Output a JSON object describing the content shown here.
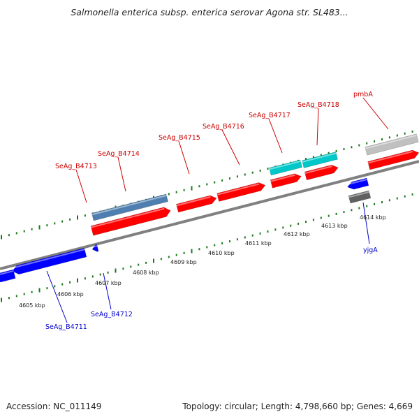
{
  "title": "Salmonella enterica subsp. enterica serovar Agona str. SL483...",
  "accession": "Accession: NC_011149",
  "stats": "Topology: circular; Length: 4,798,660 bp; Genes: 4,669",
  "colors": {
    "forward_cds": "#ff0000",
    "reverse_cds": "#0000ff",
    "trna": "#00c8c8",
    "steel": "#4f7fb0",
    "pseudo_light": "#c0c0c0",
    "pseudo_dark": "#606060",
    "tick": "#1a7a1a",
    "backbone": "#808080",
    "label_fwd": "#cc0000",
    "label_rev": "#0000cc"
  },
  "ticks": [
    "4605 kbp",
    "4606 kbp",
    "4607 kbp",
    "4608 kbp",
    "4609 kbp",
    "4610 kbp",
    "4611 kbp",
    "4612 kbp",
    "4613 kbp",
    "4614 kbp"
  ],
  "forward_labels": [
    "SeAg_B4713",
    "SeAg_B4714",
    "SeAg_B4715",
    "SeAg_B4716",
    "SeAg_B4717",
    "SeAg_B4718",
    "pmbA"
  ],
  "reverse_labels": [
    "SeAg_B4711",
    "SeAg_B4712",
    "yjgA"
  ]
}
